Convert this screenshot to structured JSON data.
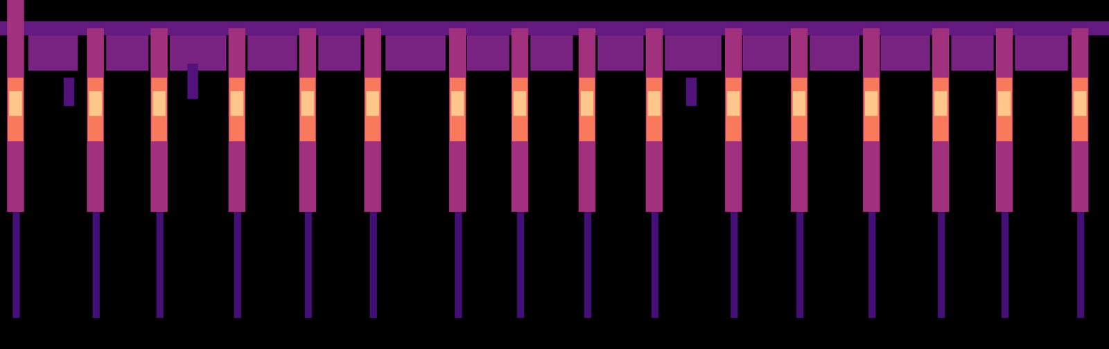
{
  "chart_data": {
    "type": "heatmap",
    "tick_labels": false,
    "color": "magma",
    "xlim": [
      0,
      1568
    ],
    "ylim": [
      0,
      494
    ],
    "color_range": [
      0,
      1
    ],
    "cells": [
      {
        "x1": 0,
        "x2": 1568,
        "y1": 444,
        "y2": 464,
        "value": 0.3
      },
      {
        "x1": 40,
        "x2": 110,
        "y1": 394,
        "y2": 444,
        "value": 0.35
      },
      {
        "x1": 150,
        "x2": 210,
        "y1": 394,
        "y2": 444,
        "value": 0.35
      },
      {
        "x1": 240,
        "x2": 320,
        "y1": 394,
        "y2": 444,
        "value": 0.35
      },
      {
        "x1": 350,
        "x2": 420,
        "y1": 394,
        "y2": 444,
        "value": 0.35
      },
      {
        "x1": 450,
        "x2": 510,
        "y1": 394,
        "y2": 444,
        "value": 0.35
      },
      {
        "x1": 545,
        "x2": 630,
        "y1": 394,
        "y2": 444,
        "value": 0.35
      },
      {
        "x1": 660,
        "x2": 720,
        "y1": 394,
        "y2": 444,
        "value": 0.35
      },
      {
        "x1": 750,
        "x2": 810,
        "y1": 394,
        "y2": 444,
        "value": 0.35
      },
      {
        "x1": 845,
        "x2": 910,
        "y1": 394,
        "y2": 444,
        "value": 0.35
      },
      {
        "x1": 940,
        "x2": 1020,
        "y1": 394,
        "y2": 444,
        "value": 0.35
      },
      {
        "x1": 1050,
        "x2": 1115,
        "y1": 394,
        "y2": 444,
        "value": 0.35
      },
      {
        "x1": 1145,
        "x2": 1215,
        "y1": 394,
        "y2": 444,
        "value": 0.35
      },
      {
        "x1": 1245,
        "x2": 1315,
        "y1": 394,
        "y2": 444,
        "value": 0.35
      },
      {
        "x1": 1345,
        "x2": 1405,
        "y1": 394,
        "y2": 444,
        "value": 0.35
      },
      {
        "x1": 1435,
        "x2": 1510,
        "y1": 394,
        "y2": 444,
        "value": 0.35
      },
      {
        "x1": 90,
        "x2": 105,
        "y1": 344,
        "y2": 384,
        "value": 0.25
      },
      {
        "x1": 265,
        "x2": 280,
        "y1": 354,
        "y2": 404,
        "value": 0.25
      },
      {
        "x1": 970,
        "x2": 985,
        "y1": 344,
        "y2": 384,
        "value": 0.25
      },
      {
        "x1": 18,
        "x2": 28,
        "y1": 44,
        "y2": 194,
        "value": 0.22
      },
      {
        "x1": 131,
        "x2": 141,
        "y1": 44,
        "y2": 194,
        "value": 0.22
      },
      {
        "x1": 221,
        "x2": 231,
        "y1": 44,
        "y2": 194,
        "value": 0.22
      },
      {
        "x1": 331,
        "x2": 341,
        "y1": 44,
        "y2": 194,
        "value": 0.22
      },
      {
        "x1": 431,
        "x2": 441,
        "y1": 44,
        "y2": 194,
        "value": 0.22
      },
      {
        "x1": 523,
        "x2": 533,
        "y1": 44,
        "y2": 194,
        "value": 0.22
      },
      {
        "x1": 643,
        "x2": 653,
        "y1": 44,
        "y2": 194,
        "value": 0.22
      },
      {
        "x1": 731,
        "x2": 741,
        "y1": 44,
        "y2": 194,
        "value": 0.22
      },
      {
        "x1": 826,
        "x2": 836,
        "y1": 44,
        "y2": 194,
        "value": 0.22
      },
      {
        "x1": 921,
        "x2": 931,
        "y1": 44,
        "y2": 194,
        "value": 0.22
      },
      {
        "x1": 1033,
        "x2": 1043,
        "y1": 44,
        "y2": 194,
        "value": 0.22
      },
      {
        "x1": 1126,
        "x2": 1136,
        "y1": 44,
        "y2": 194,
        "value": 0.22
      },
      {
        "x1": 1228,
        "x2": 1238,
        "y1": 44,
        "y2": 194,
        "value": 0.22
      },
      {
        "x1": 1326,
        "x2": 1336,
        "y1": 44,
        "y2": 194,
        "value": 0.22
      },
      {
        "x1": 1416,
        "x2": 1426,
        "y1": 44,
        "y2": 194,
        "value": 0.22
      },
      {
        "x1": 1523,
        "x2": 1533,
        "y1": 44,
        "y2": 194,
        "value": 0.22
      },
      {
        "x1": 10,
        "x2": 34,
        "y1": 194,
        "y2": 494,
        "value": 0.45
      },
      {
        "x1": 123,
        "x2": 147,
        "y1": 194,
        "y2": 454,
        "value": 0.45
      },
      {
        "x1": 213,
        "x2": 237,
        "y1": 194,
        "y2": 454,
        "value": 0.45
      },
      {
        "x1": 323,
        "x2": 347,
        "y1": 194,
        "y2": 454,
        "value": 0.45
      },
      {
        "x1": 423,
        "x2": 447,
        "y1": 194,
        "y2": 454,
        "value": 0.45
      },
      {
        "x1": 515,
        "x2": 539,
        "y1": 194,
        "y2": 454,
        "value": 0.45
      },
      {
        "x1": 635,
        "x2": 659,
        "y1": 194,
        "y2": 454,
        "value": 0.45
      },
      {
        "x1": 723,
        "x2": 747,
        "y1": 194,
        "y2": 454,
        "value": 0.45
      },
      {
        "x1": 818,
        "x2": 842,
        "y1": 194,
        "y2": 454,
        "value": 0.45
      },
      {
        "x1": 913,
        "x2": 937,
        "y1": 194,
        "y2": 454,
        "value": 0.45
      },
      {
        "x1": 1025,
        "x2": 1049,
        "y1": 194,
        "y2": 454,
        "value": 0.45
      },
      {
        "x1": 1118,
        "x2": 1142,
        "y1": 194,
        "y2": 454,
        "value": 0.45
      },
      {
        "x1": 1220,
        "x2": 1244,
        "y1": 194,
        "y2": 454,
        "value": 0.45
      },
      {
        "x1": 1318,
        "x2": 1342,
        "y1": 194,
        "y2": 454,
        "value": 0.45
      },
      {
        "x1": 1408,
        "x2": 1432,
        "y1": 194,
        "y2": 454,
        "value": 0.45
      },
      {
        "x1": 1515,
        "x2": 1539,
        "y1": 194,
        "y2": 454,
        "value": 0.45
      },
      {
        "x1": 11,
        "x2": 33,
        "y1": 294,
        "y2": 384,
        "value": 0.72
      },
      {
        "x1": 124,
        "x2": 146,
        "y1": 294,
        "y2": 384,
        "value": 0.72
      },
      {
        "x1": 214,
        "x2": 236,
        "y1": 294,
        "y2": 384,
        "value": 0.72
      },
      {
        "x1": 324,
        "x2": 346,
        "y1": 294,
        "y2": 384,
        "value": 0.72
      },
      {
        "x1": 424,
        "x2": 446,
        "y1": 294,
        "y2": 384,
        "value": 0.72
      },
      {
        "x1": 516,
        "x2": 538,
        "y1": 294,
        "y2": 384,
        "value": 0.72
      },
      {
        "x1": 636,
        "x2": 658,
        "y1": 294,
        "y2": 384,
        "value": 0.72
      },
      {
        "x1": 724,
        "x2": 746,
        "y1": 294,
        "y2": 384,
        "value": 0.72
      },
      {
        "x1": 819,
        "x2": 841,
        "y1": 294,
        "y2": 384,
        "value": 0.72
      },
      {
        "x1": 914,
        "x2": 936,
        "y1": 294,
        "y2": 384,
        "value": 0.72
      },
      {
        "x1": 1026,
        "x2": 1048,
        "y1": 294,
        "y2": 384,
        "value": 0.72
      },
      {
        "x1": 1119,
        "x2": 1141,
        "y1": 294,
        "y2": 384,
        "value": 0.72
      },
      {
        "x1": 1221,
        "x2": 1243,
        "y1": 294,
        "y2": 384,
        "value": 0.72
      },
      {
        "x1": 1319,
        "x2": 1341,
        "y1": 294,
        "y2": 384,
        "value": 0.72
      },
      {
        "x1": 1409,
        "x2": 1431,
        "y1": 294,
        "y2": 384,
        "value": 0.72
      },
      {
        "x1": 1516,
        "x2": 1538,
        "y1": 294,
        "y2": 384,
        "value": 0.72
      },
      {
        "x1": 13,
        "x2": 31,
        "y1": 330,
        "y2": 365,
        "value": 0.88
      },
      {
        "x1": 126,
        "x2": 144,
        "y1": 330,
        "y2": 365,
        "value": 0.88
      },
      {
        "x1": 216,
        "x2": 234,
        "y1": 330,
        "y2": 365,
        "value": 0.88
      },
      {
        "x1": 326,
        "x2": 344,
        "y1": 330,
        "y2": 365,
        "value": 0.88
      },
      {
        "x1": 426,
        "x2": 444,
        "y1": 330,
        "y2": 365,
        "value": 0.88
      },
      {
        "x1": 518,
        "x2": 536,
        "y1": 330,
        "y2": 365,
        "value": 0.88
      },
      {
        "x1": 638,
        "x2": 656,
        "y1": 330,
        "y2": 365,
        "value": 0.88
      },
      {
        "x1": 726,
        "x2": 744,
        "y1": 330,
        "y2": 365,
        "value": 0.88
      },
      {
        "x1": 821,
        "x2": 839,
        "y1": 330,
        "y2": 365,
        "value": 0.88
      },
      {
        "x1": 916,
        "x2": 934,
        "y1": 330,
        "y2": 365,
        "value": 0.88
      },
      {
        "x1": 1028,
        "x2": 1046,
        "y1": 330,
        "y2": 365,
        "value": 0.88
      },
      {
        "x1": 1121,
        "x2": 1139,
        "y1": 330,
        "y2": 365,
        "value": 0.88
      },
      {
        "x1": 1223,
        "x2": 1241,
        "y1": 330,
        "y2": 365,
        "value": 0.88
      },
      {
        "x1": 1321,
        "x2": 1339,
        "y1": 330,
        "y2": 365,
        "value": 0.88
      },
      {
        "x1": 1411,
        "x2": 1429,
        "y1": 330,
        "y2": 365,
        "value": 0.88
      },
      {
        "x1": 1518,
        "x2": 1536,
        "y1": 330,
        "y2": 365,
        "value": 0.88
      }
    ]
  }
}
